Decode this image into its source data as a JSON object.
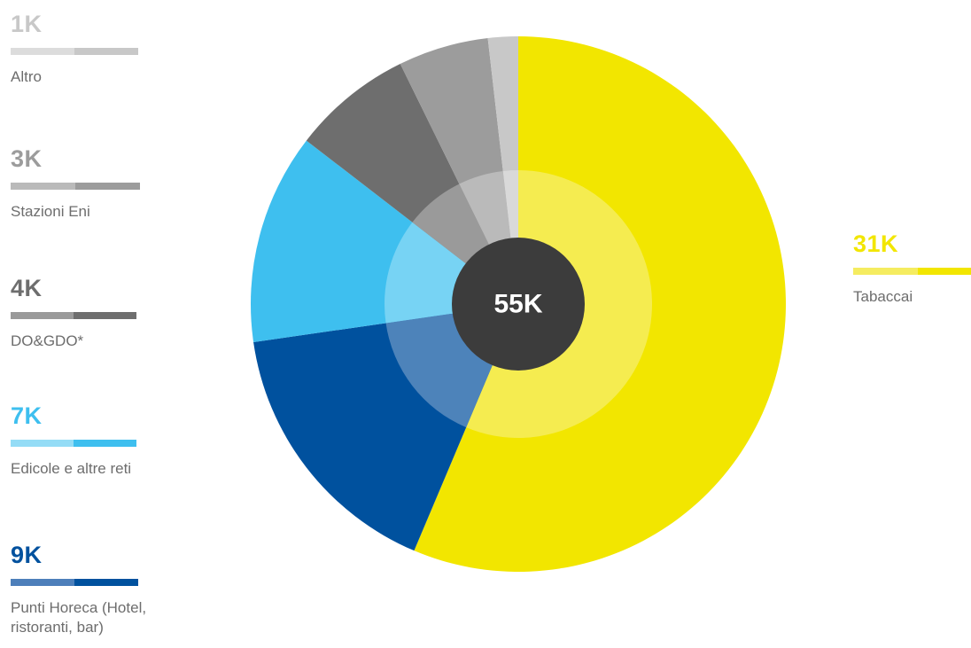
{
  "chart_data": {
    "type": "pie",
    "center_label": "55K",
    "total": 55,
    "unit": "K",
    "slices": [
      {
        "label": "Tabaccai",
        "value_label": "31K",
        "value": 31,
        "color": "#f2e600",
        "inner_color": "#f5ec50"
      },
      {
        "label": "Punti Horeca (Hotel, ristoranti, bar)",
        "value_label": "9K",
        "value": 9,
        "color": "#00519e",
        "inner_color": "#4d83ba"
      },
      {
        "label": "Edicole e altre reti",
        "value_label": "7K",
        "value": 7,
        "color": "#3ebfef",
        "inner_color": "#77d3f4"
      },
      {
        "label": "DO&GDO*",
        "value_label": "4K",
        "value": 4,
        "color": "#6e6e6e",
        "inner_color": "#9a9a9a"
      },
      {
        "label": "Stazioni Eni",
        "value_label": "3K",
        "value": 3,
        "color": "#9c9c9c",
        "inner_color": "#bababa"
      },
      {
        "label": "Altro",
        "value_label": "1K",
        "value": 1,
        "color": "#c8c8c8",
        "inner_color": "#d9d9d9"
      }
    ]
  },
  "legend": {
    "altro": {
      "value": "1K",
      "label": "Altro"
    },
    "stazioni": {
      "value": "3K",
      "label": "Stazioni Eni"
    },
    "do_gdo": {
      "value": "4K",
      "label": "DO&GDO*"
    },
    "edicole": {
      "value": "7K",
      "label": "Edicole e altre reti"
    },
    "horeca": {
      "value": "9K",
      "label": "Punti Horeca (Hotel, ristoranti, bar)"
    },
    "tabaccai": {
      "value": "31K",
      "label": "Tabaccai"
    }
  },
  "colors": {
    "value_altro": "#c8c8c8",
    "value_stazioni": "#9c9c9c",
    "value_do_gdo": "#6e6e6e",
    "value_edicole": "#3ebfef",
    "value_horeca": "#00519e",
    "value_tabaccai": "#f2e600",
    "center_disc": "#3c3c3c",
    "center_text": "#ffffff"
  }
}
